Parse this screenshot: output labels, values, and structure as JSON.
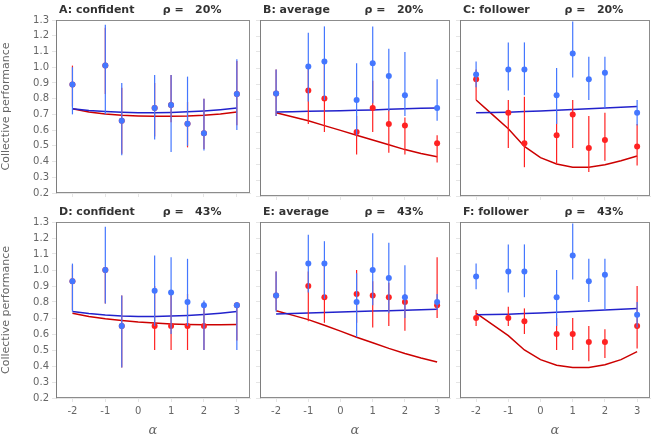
{
  "chart_data": [
    {
      "type": "line",
      "title": "A: confident",
      "subtitle": "ρ =   20%",
      "ylabel": "Collective performance",
      "xlim": [
        -2.5,
        3.4
      ],
      "xticks": [
        -2,
        -1,
        0,
        1,
        2,
        3
      ],
      "ylim": [
        0.2,
        1.3
      ],
      "yticks": [
        0.2,
        0.3,
        0.4,
        0.5,
        0.6,
        0.7,
        0.8,
        0.9,
        {
          "value": 1.0,
          "label": "1.0"
        },
        1.1,
        1.2,
        1.3
      ],
      "grid": false,
      "tick_labels": "y",
      "series": [
        {
          "type": "line",
          "color": "#2222cc",
          "x": [
            -2.0,
            -1.5,
            -1.0,
            -0.5,
            0.0,
            0.5,
            1.0,
            1.5,
            2.0,
            2.5,
            3.0
          ],
          "values": [
            0.735,
            0.725,
            0.718,
            0.713,
            0.71,
            0.71,
            0.712,
            0.716,
            0.722,
            0.73,
            0.74
          ]
        },
        {
          "type": "line",
          "color": "#cc0000",
          "x": [
            -2.0,
            -1.5,
            -1.0,
            -0.5,
            0.0,
            0.5,
            1.0,
            1.5,
            2.0,
            2.5,
            3.0
          ],
          "values": [
            0.735,
            0.715,
            0.703,
            0.694,
            0.69,
            0.688,
            0.688,
            0.69,
            0.695,
            0.703,
            0.715
          ]
        },
        {
          "type": "scatter",
          "color": "#4477ff",
          "x": [
            -2,
            -1,
            -0.5,
            0.5,
            1,
            1.5,
            2,
            3
          ],
          "values": [
            0.89,
            1.01,
            0.66,
            0.74,
            0.76,
            0.64,
            0.58,
            0.83
          ],
          "yerr_lo": [
            0.19,
            0.31,
            0.22,
            0.2,
            0.3,
            0.14,
            0.11,
            0.23
          ],
          "yerr_hi": [
            0.11,
            0.26,
            0.24,
            0.21,
            0.19,
            0.3,
            0.22,
            0.22
          ]
        },
        {
          "type": "scatter",
          "color": "#ff2222",
          "x": [
            -2,
            -1,
            -0.5,
            0.5,
            1,
            1.5,
            2,
            3
          ],
          "values": [
            0.89,
            1.01,
            0.66,
            0.74,
            0.76,
            0.64,
            0.58,
            0.83
          ],
          "yerr_lo": [
            0.14,
            0.18,
            0.21,
            0.18,
            0.11,
            0.15,
            0.1,
            0.2
          ],
          "yerr_hi": [
            0.12,
            0.24,
            0.21,
            0.16,
            0.19,
            0.14,
            0.22,
            0.21
          ]
        }
      ]
    },
    {
      "type": "line",
      "title": "B: average",
      "subtitle": "ρ =   20%",
      "xlim": [
        -2.5,
        3.4
      ],
      "xticks": [
        -2,
        -1,
        0,
        1,
        2,
        3
      ],
      "ylim": [
        0.2,
        1.3
      ],
      "yticks": [
        0.2,
        0.3,
        0.4,
        0.5,
        0.6,
        0.7,
        0.8,
        0.9,
        {
          "value": 1.0,
          "label": "1.0"
        },
        1.1,
        1.2,
        1.3
      ],
      "grid": false,
      "tick_labels": false,
      "series": [
        {
          "type": "line",
          "color": "#2222cc",
          "x": [
            -2.0,
            -1.5,
            -1.0,
            -0.5,
            0.0,
            0.5,
            1.0,
            1.5,
            2.0,
            2.5,
            3.0
          ],
          "values": [
            0.725,
            0.727,
            0.729,
            0.731,
            0.733,
            0.736,
            0.738,
            0.742,
            0.745,
            0.748,
            0.75
          ]
        },
        {
          "type": "line",
          "color": "#cc0000",
          "x": [
            -2.0,
            -1.5,
            -1.0,
            -0.5,
            0.0,
            0.5,
            1.0,
            1.5,
            2.0,
            2.5,
            3.0
          ],
          "values": [
            0.72,
            0.695,
            0.67,
            0.64,
            0.61,
            0.58,
            0.55,
            0.52,
            0.49,
            0.465,
            0.445
          ]
        },
        {
          "type": "scatter",
          "color": "#4477ff",
          "x": [
            -2,
            -1,
            -0.5,
            0.5,
            1,
            1.5,
            2,
            3
          ],
          "values": [
            0.84,
            1.01,
            1.04,
            0.8,
            1.03,
            0.95,
            0.83,
            0.75
          ],
          "yerr_lo": [
            0.14,
            0.22,
            0.24,
            0.22,
            0.25,
            0.22,
            0.13,
            0.08
          ],
          "yerr_hi": [
            0.15,
            0.21,
            0.22,
            0.23,
            0.23,
            0.17,
            0.27,
            0.18
          ]
        },
        {
          "type": "scatter",
          "color": "#ff2222",
          "x": [
            -2,
            -1,
            -0.5,
            0.5,
            1,
            1.5,
            2,
            3
          ],
          "values": [
            0.84,
            0.86,
            0.81,
            0.6,
            0.75,
            0.65,
            0.64,
            0.53
          ],
          "yerr_lo": [
            0.14,
            0.21,
            0.21,
            0.14,
            0.15,
            0.18,
            0.18,
            0.12
          ],
          "yerr_hi": [
            0.15,
            0.16,
            0.22,
            0.1,
            0.17,
            0.09,
            0.05,
            0.05
          ]
        }
      ]
    },
    {
      "type": "line",
      "title": "C: follower",
      "subtitle": "ρ =   20%",
      "xlim": [
        -2.5,
        3.4
      ],
      "xticks": [
        -2,
        -1,
        0,
        1,
        2,
        3
      ],
      "ylim": [
        0.2,
        1.3
      ],
      "yticks": [
        0.2,
        0.3,
        0.4,
        0.5,
        0.6,
        0.7,
        0.8,
        0.9,
        {
          "value": 1.0,
          "label": "1.0"
        },
        1.1,
        1.2,
        1.3
      ],
      "grid": false,
      "tick_labels": false,
      "series": [
        {
          "type": "line",
          "color": "#2222cc",
          "x": [
            -2.0,
            -1.5,
            -1.0,
            -0.5,
            0.0,
            0.5,
            1.0,
            1.5,
            2.0,
            2.5,
            3.0
          ],
          "values": [
            0.72,
            0.722,
            0.724,
            0.728,
            0.732,
            0.736,
            0.74,
            0.745,
            0.75,
            0.755,
            0.76
          ]
        },
        {
          "type": "line",
          "color": "#cc0000",
          "x": [
            -2.0,
            -1.5,
            -1.0,
            -0.5,
            0.0,
            0.5,
            1.0,
            1.5,
            2.0,
            2.5,
            3.0
          ],
          "values": [
            0.8,
            0.71,
            0.62,
            0.51,
            0.44,
            0.4,
            0.38,
            0.38,
            0.395,
            0.42,
            0.45
          ]
        },
        {
          "type": "scatter",
          "color": "#4477ff",
          "x": [
            -2,
            -1,
            -0.5,
            0.5,
            1,
            1.5,
            2,
            3
          ],
          "values": [
            0.96,
            0.99,
            0.99,
            0.83,
            1.09,
            0.93,
            0.97,
            0.72
          ],
          "yerr_lo": [
            0.08,
            0.13,
            0.16,
            0.18,
            0.15,
            0.13,
            0.22,
            0.08
          ],
          "yerr_hi": [
            0.08,
            0.17,
            0.17,
            0.17,
            0.2,
            0.14,
            0.1,
            0.08
          ]
        },
        {
          "type": "scatter",
          "color": "#ff2222",
          "x": [
            -2,
            -1,
            -0.5,
            0.5,
            1,
            1.5,
            2,
            3
          ],
          "values": [
            0.93,
            0.72,
            0.53,
            0.58,
            0.71,
            0.5,
            0.55,
            0.51
          ],
          "yerr_lo": [
            0.13,
            0.22,
            0.15,
            0.18,
            0.21,
            0.15,
            0.13,
            0.12
          ],
          "yerr_hi": [
            0.06,
            0.08,
            0.29,
            0.15,
            0.09,
            0.2,
            0.17,
            0.14
          ]
        }
      ]
    },
    {
      "type": "line",
      "title": "D: confident",
      "subtitle": "ρ =   43%",
      "xlabel": "α",
      "ylabel": "Collective performance",
      "xlim": [
        -2.5,
        3.4
      ],
      "xticks": [
        -2,
        -1,
        0,
        1,
        2,
        3
      ],
      "ylim": [
        0.2,
        1.3
      ],
      "yticks": [
        0.2,
        0.3,
        0.4,
        0.5,
        0.6,
        0.7,
        0.8,
        0.9,
        {
          "value": 1.0,
          "label": "1.0"
        },
        1.1,
        1.2,
        1.3
      ],
      "grid": false,
      "series": [
        {
          "type": "line",
          "color": "#2222cc",
          "x": [
            -2.0,
            -1.5,
            -1.0,
            -0.5,
            0.0,
            0.5,
            1.0,
            1.5,
            2.0,
            2.5,
            3.0
          ],
          "values": [
            0.74,
            0.728,
            0.719,
            0.713,
            0.71,
            0.71,
            0.712,
            0.716,
            0.722,
            0.73,
            0.74
          ]
        },
        {
          "type": "line",
          "color": "#cc0000",
          "x": [
            -2.0,
            -1.5,
            -1.0,
            -0.5,
            0.0,
            0.5,
            1.0,
            1.5,
            2.0,
            2.5,
            3.0
          ],
          "values": [
            0.73,
            0.71,
            0.695,
            0.685,
            0.675,
            0.668,
            0.663,
            0.66,
            0.658,
            0.658,
            0.66
          ]
        },
        {
          "type": "scatter",
          "color": "#4477ff",
          "x": [
            -2,
            -1,
            -0.5,
            0.5,
            1,
            1.5,
            2,
            3
          ],
          "values": [
            0.93,
            1.0,
            0.65,
            0.87,
            0.86,
            0.8,
            0.78,
            0.78
          ],
          "yerr_lo": [
            0.19,
            0.21,
            0.26,
            0.22,
            0.26,
            0.15,
            0.28,
            0.28
          ],
          "yerr_hi": [
            0.11,
            0.27,
            0.19,
            0.22,
            0.22,
            0.27,
            0.03,
            0.02
          ]
        },
        {
          "type": "scatter",
          "color": "#ff2222",
          "x": [
            -2,
            -1,
            -0.5,
            0.5,
            1,
            1.5,
            2,
            3
          ],
          "values": [
            0.93,
            1.0,
            0.65,
            0.65,
            0.65,
            0.65,
            0.65,
            0.78
          ],
          "yerr_lo": [
            0.18,
            0.21,
            0.26,
            0.15,
            0.15,
            0.15,
            0.15,
            0.22
          ],
          "yerr_hi": [
            0.1,
            0.0,
            0.19,
            0.25,
            0.22,
            0.2,
            0.15,
            0.01
          ]
        }
      ]
    },
    {
      "type": "line",
      "title": "E: average",
      "subtitle": "ρ =   43%",
      "xlabel": "α",
      "xlim": [
        -2.5,
        3.4
      ],
      "xticks": [
        -2,
        -1,
        0,
        1,
        2,
        3
      ],
      "ylim": [
        0.2,
        1.3
      ],
      "yticks": [
        0.2,
        0.3,
        0.4,
        0.5,
        0.6,
        0.7,
        0.8,
        0.9,
        {
          "value": 1.0,
          "label": "1.0"
        },
        1.1,
        1.2,
        1.3
      ],
      "grid": false,
      "tick_labels": "x",
      "series": [
        {
          "type": "line",
          "color": "#2222cc",
          "x": [
            -2.0,
            -1.5,
            -1.0,
            -0.5,
            0.0,
            0.5,
            1.0,
            1.5,
            2.0,
            2.5,
            3.0
          ],
          "values": [
            0.725,
            0.728,
            0.731,
            0.734,
            0.737,
            0.74,
            0.743,
            0.746,
            0.749,
            0.752,
            0.755
          ]
        },
        {
          "type": "line",
          "color": "#cc0000",
          "x": [
            -2.0,
            -1.5,
            -1.0,
            -0.5,
            0.0,
            0.5,
            1.0,
            1.5,
            2.0,
            2.5,
            3.0
          ],
          "values": [
            0.745,
            0.718,
            0.69,
            0.655,
            0.618,
            0.58,
            0.545,
            0.51,
            0.478,
            0.45,
            0.425
          ]
        },
        {
          "type": "scatter",
          "color": "#4477ff",
          "x": [
            -2,
            -1,
            -0.5,
            0.5,
            1,
            1.5,
            2,
            3
          ],
          "values": [
            0.84,
            1.04,
            1.04,
            0.8,
            1.0,
            0.95,
            0.83,
            0.8
          ],
          "yerr_lo": [
            0.1,
            0.18,
            0.22,
            0.22,
            0.22,
            0.22,
            0.13,
            0.05
          ],
          "yerr_hi": [
            0.15,
            0.18,
            0.14,
            0.18,
            0.23,
            0.22,
            0.2,
            0.05
          ]
        },
        {
          "type": "scatter",
          "color": "#ff2222",
          "x": [
            -2,
            -1,
            -0.5,
            0.5,
            1,
            1.5,
            2,
            3
          ],
          "values": [
            0.84,
            0.9,
            0.83,
            0.85,
            0.84,
            0.83,
            0.8,
            0.78
          ],
          "yerr_lo": [
            0.09,
            0.22,
            0.16,
            0.18,
            0.2,
            0.18,
            0.18,
            0.08
          ],
          "yerr_hi": [
            0.15,
            0.09,
            0.2,
            0.15,
            0.09,
            0.09,
            0.05,
            0.3
          ]
        }
      ]
    },
    {
      "type": "line",
      "title": "F: follower",
      "subtitle": "ρ =   43%",
      "xlabel": "α",
      "xlim": [
        -2.5,
        3.4
      ],
      "xticks": [
        -2,
        -1,
        0,
        1,
        2,
        3
      ],
      "ylim": [
        0.2,
        1.3
      ],
      "yticks": [
        0.2,
        0.3,
        0.4,
        0.5,
        0.6,
        0.7,
        0.8,
        0.9,
        {
          "value": 1.0,
          "label": "1.0"
        },
        1.1,
        1.2,
        1.3
      ],
      "grid": false,
      "tick_labels": "x",
      "series": [
        {
          "type": "line",
          "color": "#2222cc",
          "x": [
            -2.0,
            -1.5,
            -1.0,
            -0.5,
            0.0,
            0.5,
            1.0,
            1.5,
            2.0,
            2.5,
            3.0
          ],
          "values": [
            0.72,
            0.722,
            0.724,
            0.728,
            0.732,
            0.736,
            0.74,
            0.745,
            0.75,
            0.755,
            0.76
          ]
        },
        {
          "type": "line",
          "color": "#cc0000",
          "x": [
            -2.0,
            -1.5,
            -1.0,
            -0.5,
            0.0,
            0.5,
            1.0,
            1.5,
            2.0,
            2.5,
            3.0
          ],
          "values": [
            0.73,
            0.66,
            0.59,
            0.5,
            0.44,
            0.405,
            0.39,
            0.39,
            0.408,
            0.44,
            0.49
          ]
        },
        {
          "type": "scatter",
          "color": "#4477ff",
          "x": [
            -2,
            -1,
            -0.5,
            0.5,
            1,
            1.5,
            2,
            3
          ],
          "values": [
            0.96,
            0.99,
            0.99,
            0.83,
            1.09,
            0.93,
            0.97,
            0.72
          ],
          "yerr_lo": [
            0.08,
            0.13,
            0.16,
            0.18,
            0.15,
            0.13,
            0.22,
            0.08
          ],
          "yerr_hi": [
            0.08,
            0.17,
            0.17,
            0.17,
            0.2,
            0.14,
            0.1,
            0.08
          ]
        },
        {
          "type": "scatter",
          "color": "#ff2222",
          "x": [
            -2,
            -1,
            -0.5,
            0.5,
            1,
            1.5,
            2,
            3
          ],
          "values": [
            0.7,
            0.7,
            0.68,
            0.6,
            0.6,
            0.55,
            0.55,
            0.65
          ],
          "yerr_lo": [
            0.05,
            0.05,
            0.08,
            0.1,
            0.1,
            0.12,
            0.1,
            0.14
          ],
          "yerr_hi": [
            0.05,
            0.07,
            0.08,
            0.1,
            0.1,
            0.1,
            0.08,
            0.25
          ]
        }
      ]
    }
  ]
}
